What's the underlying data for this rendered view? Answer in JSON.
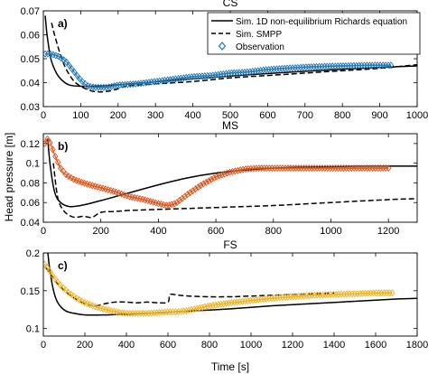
{
  "figure": {
    "ylabel": "Head pressure [m]",
    "xlabel": "Time [s]"
  },
  "legend": {
    "items": [
      {
        "label": "Sim. 1D non-equilibrium Richards equation",
        "style": "solid"
      },
      {
        "label": "Sim. SMPP",
        "style": "dashed"
      },
      {
        "label": "Observation",
        "style": "marker"
      }
    ],
    "location": "top-right of panel a"
  },
  "colors": {
    "cs": "#1f77b4",
    "ms": "#d95319",
    "fs": "#edb120",
    "sim": "#000000"
  },
  "chart_data": [
    {
      "type": "line",
      "panel": "a)",
      "title": "CS",
      "xlim": [
        0,
        1000
      ],
      "ylim": [
        0.03,
        0.07
      ],
      "xticks": [
        "0",
        "100",
        "200",
        "300",
        "400",
        "500",
        "600",
        "700",
        "800",
        "900",
        "1000"
      ],
      "yticks": [
        "0.03",
        "0.04",
        "0.05",
        "0.06",
        "0.07"
      ],
      "series": [
        {
          "name": "Sim. 1D non-equilibrium Richards equation",
          "style": "solid",
          "x": [
            5,
            10,
            20,
            35,
            50,
            70,
            100,
            130,
            170,
            250,
            350,
            450,
            550,
            650,
            750,
            850,
            950,
            1000
          ],
          "y": [
            0.068,
            0.06,
            0.05,
            0.044,
            0.041,
            0.039,
            0.0385,
            0.0385,
            0.0388,
            0.0397,
            0.041,
            0.0422,
            0.0433,
            0.0443,
            0.0452,
            0.046,
            0.0467,
            0.047
          ]
        },
        {
          "name": "Sim. SMPP",
          "style": "dashed",
          "x": [
            22,
            30,
            45,
            60,
            80,
            100,
            130,
            160,
            190,
            220,
            250,
            300,
            400,
            500,
            600,
            700,
            800,
            900,
            1000
          ],
          "y": [
            0.065,
            0.06,
            0.052,
            0.046,
            0.041,
            0.0385,
            0.0365,
            0.0362,
            0.037,
            0.0385,
            0.039,
            0.0395,
            0.0405,
            0.042,
            0.043,
            0.044,
            0.045,
            0.046,
            0.0475
          ]
        },
        {
          "name": "Observation",
          "style": "marker",
          "x": [
            5,
            20,
            40,
            60,
            80,
            100,
            120,
            140,
            170,
            200,
            250,
            300,
            350,
            400,
            450,
            500,
            550,
            600,
            650,
            700,
            750,
            800,
            850,
            900,
            930
          ],
          "y": [
            0.052,
            0.052,
            0.051,
            0.049,
            0.045,
            0.041,
            0.0385,
            0.038,
            0.038,
            0.039,
            0.0395,
            0.0405,
            0.0415,
            0.0425,
            0.043,
            0.044,
            0.0445,
            0.0455,
            0.046,
            0.0465,
            0.0468,
            0.047,
            0.0472,
            0.0473,
            0.0473
          ]
        }
      ]
    },
    {
      "type": "line",
      "panel": "b)",
      "title": "MS",
      "xlim": [
        0,
        1300
      ],
      "ylim": [
        0.04,
        0.13
      ],
      "xticks": [
        "0",
        "200",
        "400",
        "600",
        "800",
        "1000",
        "1200"
      ],
      "yticks": [
        "0.04",
        "0.06",
        "0.08",
        "0.1",
        "0.12"
      ],
      "series": [
        {
          "name": "Sim. 1D non-equilibrium Richards equation",
          "style": "solid",
          "x": [
            15,
            25,
            40,
            60,
            90,
            130,
            200,
            300,
            400,
            500,
            600,
            700,
            800,
            900,
            1000,
            1100,
            1300
          ],
          "y": [
            0.125,
            0.095,
            0.07,
            0.06,
            0.056,
            0.057,
            0.062,
            0.07,
            0.078,
            0.085,
            0.09,
            0.093,
            0.095,
            0.096,
            0.0965,
            0.097,
            0.097
          ]
        },
        {
          "name": "Sim. SMPP",
          "style": "dashed",
          "x": [
            35,
            50,
            70,
            90,
            110,
            140,
            170,
            200,
            250,
            300,
            400,
            500,
            600,
            800,
            1000,
            1200,
            1300
          ],
          "y": [
            0.1,
            0.065,
            0.052,
            0.047,
            0.045,
            0.046,
            0.045,
            0.05,
            0.051,
            0.052,
            0.053,
            0.054,
            0.055,
            0.057,
            0.06,
            0.063,
            0.064
          ]
        },
        {
          "name": "Observation",
          "style": "marker",
          "x": [
            5,
            15,
            25,
            40,
            60,
            80,
            110,
            150,
            200,
            250,
            300,
            350,
            400,
            430,
            460,
            500,
            550,
            600,
            650,
            700,
            750,
            800,
            900,
            1000,
            1100,
            1200
          ],
          "y": [
            0.12,
            0.125,
            0.12,
            0.108,
            0.095,
            0.088,
            0.083,
            0.079,
            0.075,
            0.071,
            0.066,
            0.063,
            0.059,
            0.057,
            0.059,
            0.068,
            0.078,
            0.086,
            0.091,
            0.094,
            0.095,
            0.095,
            0.095,
            0.095,
            0.095,
            0.095
          ]
        }
      ]
    },
    {
      "type": "line",
      "panel": "c)",
      "title": "FS",
      "xlim": [
        0,
        1800
      ],
      "ylim": [
        0.09,
        0.2
      ],
      "xticks": [
        "0",
        "200",
        "400",
        "600",
        "800",
        "1000",
        "1200",
        "1400",
        "1600",
        "1800"
      ],
      "yticks": [
        "0.1",
        "0.15",
        "0.2"
      ],
      "series": [
        {
          "name": "Sim. 1D non-equilibrium Richards equation",
          "style": "solid",
          "x": [
            20,
            30,
            45,
            60,
            80,
            110,
            150,
            200,
            300,
            400,
            500,
            700,
            900,
            1100,
            1300,
            1500,
            1700,
            1800
          ],
          "y": [
            0.205,
            0.18,
            0.155,
            0.14,
            0.13,
            0.123,
            0.12,
            0.118,
            0.118,
            0.119,
            0.12,
            0.123,
            0.126,
            0.13,
            0.133,
            0.136,
            0.139,
            0.14
          ]
        },
        {
          "name": "Sim. SMPP",
          "style": "dashed",
          "x": [
            10,
            30,
            60,
            100,
            150,
            200,
            250,
            300,
            350,
            400,
            450,
            500,
            550,
            600,
            610,
            650,
            700,
            800,
            900,
            1000,
            1200,
            1400
          ],
          "y": [
            0.18,
            0.175,
            0.162,
            0.15,
            0.14,
            0.133,
            0.13,
            0.133,
            0.135,
            0.135,
            0.134,
            0.135,
            0.134,
            0.135,
            0.145,
            0.144,
            0.143,
            0.142,
            0.142,
            0.143,
            0.145,
            0.147
          ]
        },
        {
          "name": "Observation",
          "style": "marker",
          "x": [
            5,
            20,
            40,
            60,
            90,
            120,
            160,
            200,
            250,
            300,
            350,
            400,
            450,
            500,
            550,
            600,
            650,
            700,
            800,
            900,
            1000,
            1100,
            1200,
            1300,
            1400,
            1500,
            1600,
            1680
          ],
          "y": [
            0.185,
            0.18,
            0.172,
            0.164,
            0.155,
            0.148,
            0.14,
            0.134,
            0.129,
            0.125,
            0.122,
            0.12,
            0.12,
            0.12,
            0.121,
            0.122,
            0.122,
            0.124,
            0.13,
            0.134,
            0.137,
            0.14,
            0.142,
            0.144,
            0.145,
            0.146,
            0.147,
            0.147
          ]
        }
      ]
    }
  ]
}
